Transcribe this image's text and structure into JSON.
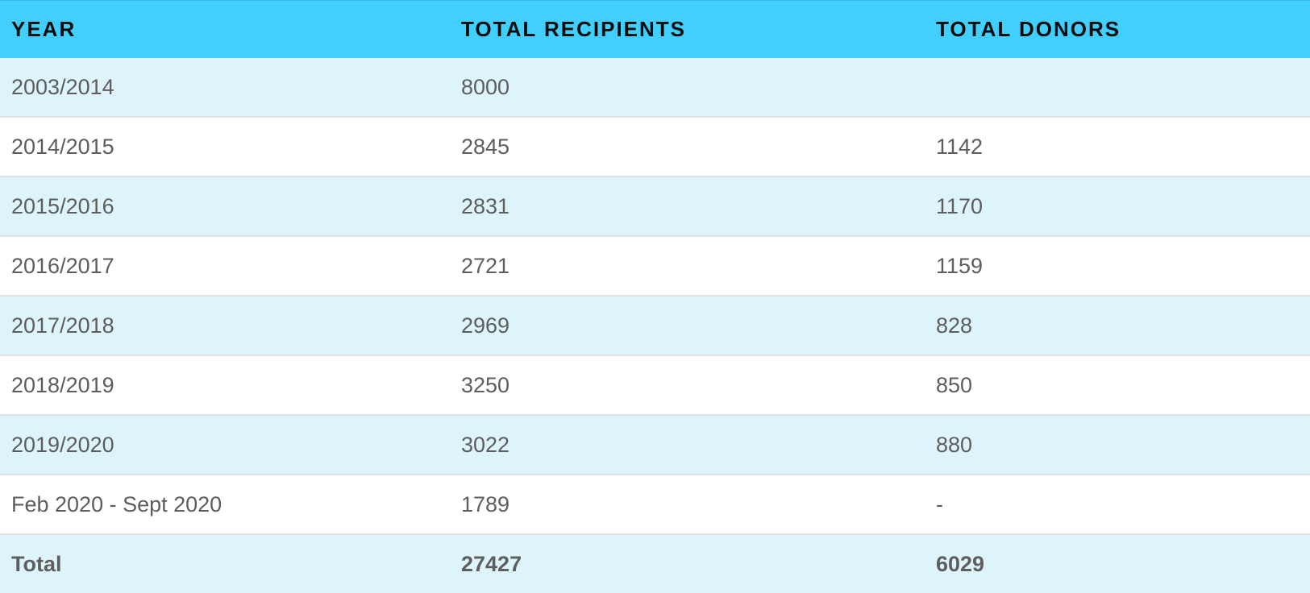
{
  "table": {
    "headers": [
      "YEAR",
      "TOTAL RECIPIENTS",
      "TOTAL DONORS"
    ],
    "rows": [
      [
        "2003/2014",
        "8000",
        ""
      ],
      [
        "2014/2015",
        "2845",
        "1142"
      ],
      [
        "2015/2016",
        "2831",
        "1170"
      ],
      [
        "2016/2017",
        "2721",
        "1159"
      ],
      [
        "2017/2018",
        "2969",
        "828"
      ],
      [
        "2018/2019",
        "3250",
        "850"
      ],
      [
        "2019/2020",
        "3022",
        "880"
      ],
      [
        "Feb 2020 - Sept 2020",
        "1789",
        "-"
      ]
    ],
    "total": [
      "Total",
      "27427",
      "6029"
    ]
  },
  "colors": {
    "header_bg": "#40cffe",
    "row_alt_bg": "#ddf5fa",
    "row_plain_bg": "#ffffff"
  }
}
